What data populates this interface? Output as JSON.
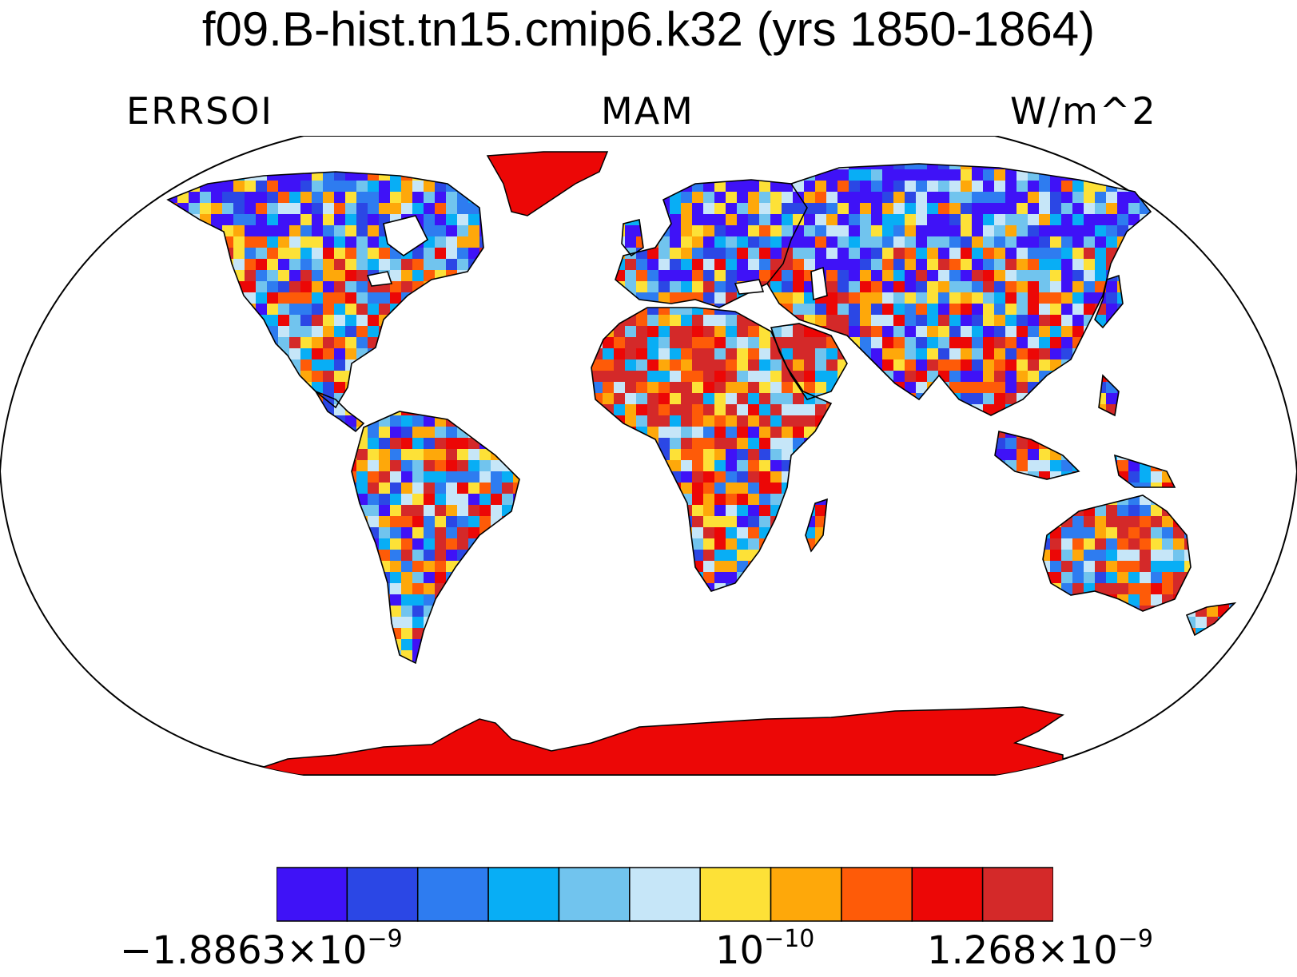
{
  "title": "f09.B-hist.tn15.cmip6.k32 (yrs 1850-1864)",
  "labels": {
    "left": "ERRSOI",
    "center": "MAM",
    "right": "W/m^2"
  },
  "colorbar": {
    "colors": [
      "#3f12f7",
      "#2b47e5",
      "#2e7cf0",
      "#08aef5",
      "#71c4ee",
      "#c6e6f8",
      "#fde137",
      "#fea80a",
      "#fe5b08",
      "#ec0706",
      "#d42929"
    ],
    "labels": [
      {
        "mant": "−1.8863×10",
        "exp": "−9"
      },
      {
        "mant": "10",
        "exp": "−10"
      },
      {
        "mant": "1.268×10",
        "exp": "−9"
      }
    ]
  },
  "map": {
    "projection": "robinson",
    "antarctica_color": "#ec0706",
    "greenland_color": "#ec0706",
    "land_pattern": "mottled"
  }
}
